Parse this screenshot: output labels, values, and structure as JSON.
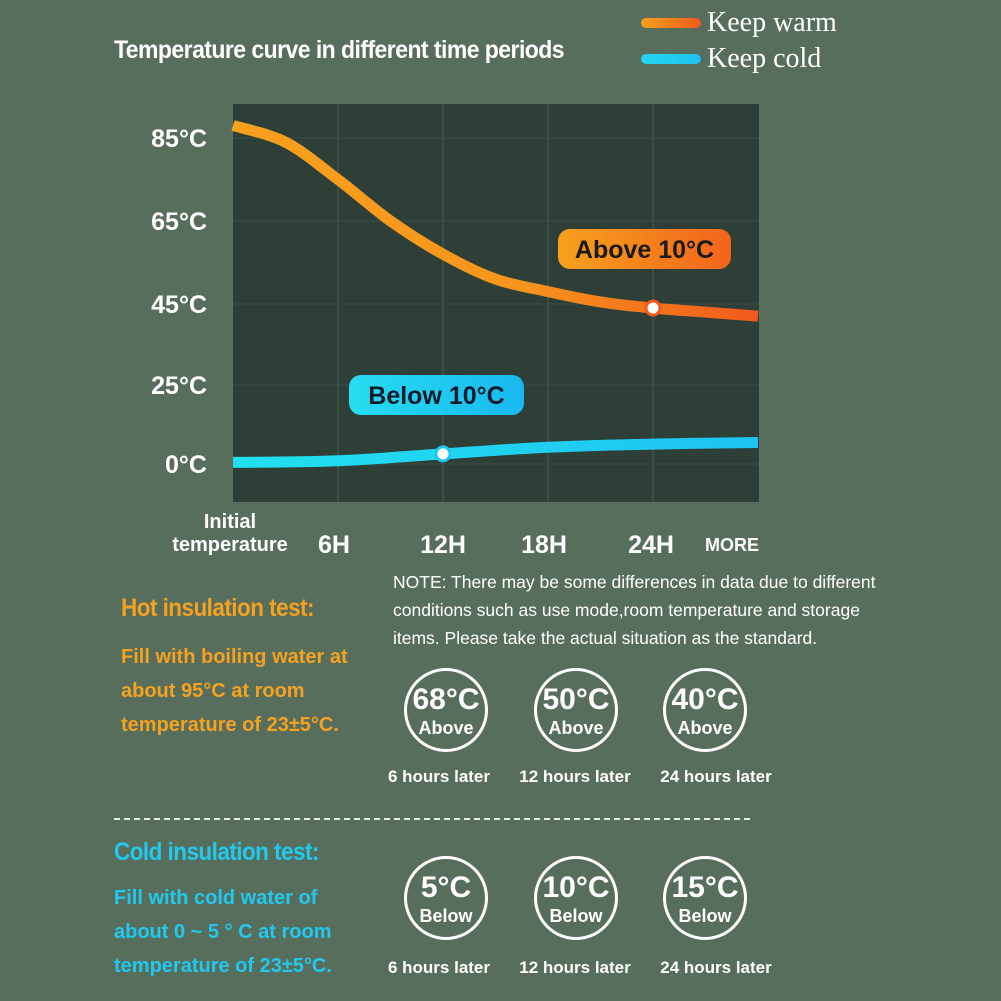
{
  "chart_data": {
    "type": "line",
    "title": "Temperature curve in different time periods",
    "x": [
      0,
      6,
      12,
      18,
      24,
      30
    ],
    "categories": [
      "Initial temperature",
      "6H",
      "12H",
      "18H",
      "24H",
      "MORE"
    ],
    "y_ticks": [
      "85°C",
      "65°C",
      "45°C",
      "25°C",
      "0°C"
    ],
    "series": [
      {
        "name": "Keep warm",
        "color": "#f7a11d",
        "color_end": "#f25a1c",
        "x": [
          0,
          3,
          6,
          9,
          12,
          15,
          18,
          21,
          24,
          27,
          30
        ],
        "y": [
          88,
          84,
          75,
          65,
          57,
          51,
          48,
          45.5,
          44,
          43,
          42
        ],
        "marker_x": 24,
        "marker_y": 44,
        "annotation": "Above 10°C"
      },
      {
        "name": "Keep cold",
        "color": "#1fd0ef",
        "color_end": "#1ec7f2",
        "x": [
          0,
          6,
          12,
          18,
          24,
          30
        ],
        "y": [
          0.5,
          1.0,
          3.2,
          5.3,
          6.3,
          6.8
        ],
        "marker_x": 12,
        "marker_y": 3.2,
        "annotation": "Below 10°C"
      }
    ],
    "grid": true,
    "legend_position": "top-right"
  },
  "note": {
    "lines": [
      "NOTE: There may be some differences in data due to different",
      "conditions such as use mode,room temperature and storage",
      "items. Please take the actual situation as the standard."
    ]
  },
  "hot_test": {
    "heading": "Hot insulation test:",
    "color": "#f4a21f",
    "desc_lines": [
      "Fill with boiling water at",
      "about 95°C at room",
      "temperature of 23±5°C."
    ],
    "badges": [
      {
        "temp": "68°C",
        "word": "Above",
        "time": "6 hours later"
      },
      {
        "temp": "50°C",
        "word": "Above",
        "time": "12 hours later"
      },
      {
        "temp": "40°C",
        "word": "Above",
        "time": "24 hours later"
      }
    ]
  },
  "cold_test": {
    "heading": "Cold insulation test:",
    "color": "#22c9ee",
    "desc_lines": [
      "Fill with cold water of",
      "about 0 ~ 5 ° C at room",
      "temperature of 23±5°C."
    ],
    "badges": [
      {
        "temp": "5°C",
        "word": "Below",
        "time": "6 hours later"
      },
      {
        "temp": "10°C",
        "word": "Below",
        "time": "12 hours later"
      },
      {
        "temp": "15°C",
        "word": "Below",
        "time": "24 hours later"
      }
    ]
  }
}
